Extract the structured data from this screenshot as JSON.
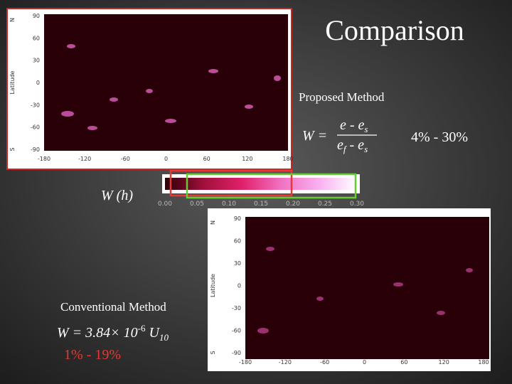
{
  "title": "Comparison",
  "proposed": {
    "label": "Proposed Method",
    "formula": {
      "lhs": "W =",
      "numerator": "e - e",
      "numerator_sub": "s",
      "denominator_e": "e",
      "denominator_sub": "f",
      "denominator_rest": " - e",
      "denominator_rest_sub": "s"
    },
    "range": "4% - 30%"
  },
  "conventional": {
    "label": "Conventional Method",
    "formula": {
      "main": "W = 3.84× 10",
      "sup": "-6",
      "var": " U",
      "sub": "10"
    },
    "range": "1% - 19%"
  },
  "colorbar": {
    "label": "W (h)",
    "ticks": [
      "0.00",
      "0.05",
      "0.10",
      "0.15",
      "0.20",
      "0.25",
      "0.30"
    ]
  },
  "map_top": {
    "y_axis_label": "Latitude",
    "north": "N",
    "south": "S",
    "lat_ticks": [
      "90",
      "60",
      "30",
      "0",
      "-30",
      "-60",
      "-90"
    ],
    "lon_ticks": [
      "-180",
      "-120",
      "-60",
      "0",
      "60",
      "120",
      "180"
    ]
  },
  "map_bottom": {
    "y_axis_label": "Latitude",
    "north": "N",
    "south": "S",
    "lat_ticks": [
      "90",
      "60",
      "30",
      "0",
      "-30",
      "-60",
      "-90"
    ],
    "lon_ticks": [
      "-180",
      "-120",
      "-60",
      "0",
      "60",
      "120",
      "180"
    ]
  }
}
